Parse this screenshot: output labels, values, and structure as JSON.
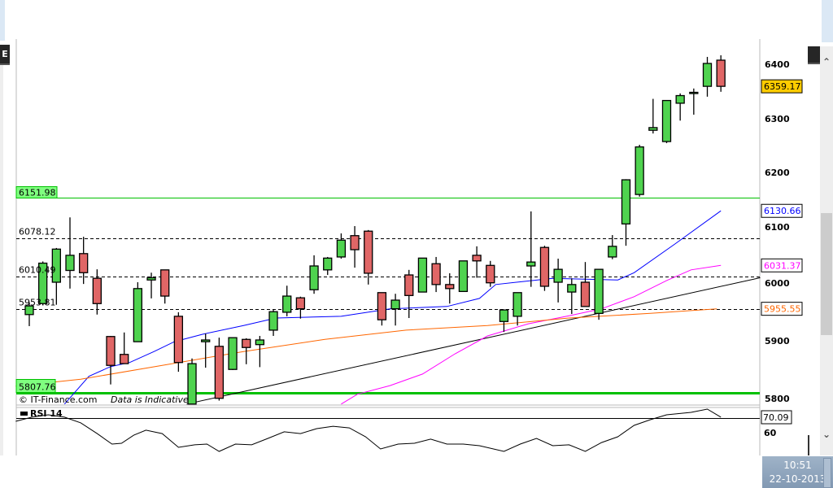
{
  "window": {
    "left_button_label": "E"
  },
  "footer": {
    "copyright": "© IT-Finance.com",
    "disclaimer": "Data is Indicative"
  },
  "clock": {
    "time": "10:51",
    "date": "22-10-2013"
  },
  "colors": {
    "bull": "#4fd34f",
    "bear": "#e06666",
    "ma_fast": "#0000ff",
    "ma_mid": "#ff00ff",
    "ma_slow": "#ff6600",
    "level_green": "#00c000",
    "last_price_bg": "#ffcc00"
  },
  "chart_data": {
    "type": "candlestick",
    "price_axis": {
      "ticks": [
        6400,
        6300,
        6200,
        6100,
        6000,
        5900,
        5800
      ]
    },
    "last_price": "6359.17",
    "candles": [
      [
        5944,
        5965,
        5924,
        5959
      ],
      [
        5963,
        6037,
        5960,
        6034
      ],
      [
        6000,
        6061,
        5961,
        6059
      ],
      [
        6021,
        6116,
        5989,
        6048
      ],
      [
        6051,
        6081,
        5997,
        6017
      ],
      [
        6007,
        6023,
        5944,
        5963
      ],
      [
        5906,
        5907,
        5823,
        5856
      ],
      [
        5875,
        5913,
        5859,
        5859
      ],
      [
        5897,
        6000,
        5897,
        5989
      ],
      [
        6004,
        6017,
        5972,
        6008
      ],
      [
        6022,
        6022,
        5963,
        5976
      ],
      [
        5941,
        5948,
        5845,
        5861
      ],
      [
        5789,
        5868,
        5789,
        5859
      ],
      [
        5897,
        5911,
        5852,
        5900
      ],
      [
        5889,
        5904,
        5795,
        5799
      ],
      [
        5849,
        5904,
        5848,
        5904
      ],
      [
        5901,
        5903,
        5858,
        5887
      ],
      [
        5892,
        5907,
        5853,
        5900
      ],
      [
        5917,
        5952,
        5907,
        5949
      ],
      [
        5948,
        5994,
        5941,
        5976
      ],
      [
        5973,
        5975,
        5937,
        5954
      ],
      [
        5987,
        6048,
        5980,
        6029
      ],
      [
        6022,
        6045,
        6013,
        6043
      ],
      [
        6045,
        6087,
        6042,
        6075
      ],
      [
        6083,
        6100,
        6026,
        6058
      ],
      [
        6091,
        6093,
        5996,
        6016
      ],
      [
        5982,
        5982,
        5925,
        5935
      ],
      [
        5954,
        5980,
        5925,
        5969
      ],
      [
        6013,
        6022,
        5938,
        5977
      ],
      [
        5983,
        6043,
        5983,
        6043
      ],
      [
        6033,
        6045,
        5983,
        5996
      ],
      [
        5996,
        6016,
        5963,
        5989
      ],
      [
        5984,
        6038,
        5984,
        6038
      ],
      [
        6048,
        6064,
        6008,
        6038
      ],
      [
        6030,
        6038,
        5992,
        5999
      ],
      [
        5932,
        5952,
        5914,
        5952
      ],
      [
        5941,
        5982,
        5925,
        5982
      ],
      [
        6029,
        6127,
        5992,
        6036
      ],
      [
        6062,
        6065,
        5985,
        5993
      ],
      [
        6000,
        6042,
        5965,
        6023
      ],
      [
        5983,
        6007,
        5945,
        5996
      ],
      [
        6000,
        6036,
        5958,
        5958
      ],
      [
        5946,
        6023,
        5935,
        6023
      ],
      [
        6045,
        6084,
        6041,
        6064
      ],
      [
        6104,
        6186,
        6065,
        6185
      ],
      [
        6158,
        6250,
        6154,
        6246
      ],
      [
        6277,
        6335,
        6271,
        6282
      ],
      [
        6256,
        6332,
        6253,
        6332
      ],
      [
        6327,
        6345,
        6295,
        6341
      ],
      [
        6346,
        6354,
        6306,
        6347
      ],
      [
        6358,
        6412,
        6339,
        6400
      ],
      [
        6406,
        6415,
        6348,
        6358
      ]
    ],
    "candle_format": [
      "open",
      "high",
      "low",
      "close"
    ],
    "moving_averages": [
      {
        "name": "fast",
        "label": "6130.66",
        "points": [
          [
            2.6,
            5789
          ],
          [
            4.4,
            5837
          ],
          [
            6.0,
            5854
          ],
          [
            7.4,
            5861
          ],
          [
            9.2,
            5880
          ],
          [
            10.7,
            5897
          ],
          [
            12.8,
            5910
          ],
          [
            15.8,
            5925
          ],
          [
            18.2,
            5938
          ],
          [
            23.0,
            5941
          ],
          [
            26.6,
            5954
          ],
          [
            30.8,
            5958
          ],
          [
            33.2,
            5972
          ],
          [
            34.4,
            5996
          ],
          [
            38.6,
            6007
          ],
          [
            43.4,
            6004
          ],
          [
            44.6,
            6017
          ],
          [
            47.6,
            6068
          ],
          [
            51.0,
            6128
          ]
        ]
      },
      {
        "name": "mid",
        "label": "6031.37",
        "points": [
          [
            23.0,
            5789
          ],
          [
            24.2,
            5806
          ],
          [
            26.6,
            5821
          ],
          [
            29.0,
            5841
          ],
          [
            31.4,
            5876
          ],
          [
            33.8,
            5907
          ],
          [
            36.8,
            5928
          ],
          [
            39.8,
            5942
          ],
          [
            42.2,
            5954
          ],
          [
            44.6,
            5975
          ],
          [
            47.0,
            6003
          ],
          [
            48.8,
            6022
          ],
          [
            51.0,
            6030
          ]
        ]
      },
      {
        "name": "slow",
        "label": "5955.55",
        "points": [
          [
            -1.0,
            5820
          ],
          [
            3.8,
            5832
          ],
          [
            9.8,
            5856
          ],
          [
            15.8,
            5880
          ],
          [
            21.8,
            5901
          ],
          [
            27.8,
            5917
          ],
          [
            33.8,
            5925
          ],
          [
            39.8,
            5938
          ],
          [
            45.8,
            5946
          ],
          [
            50.7,
            5954
          ]
        ]
      }
    ],
    "trendline": [
      [
        11.6,
        5789
      ],
      [
        53.9,
        6008
      ]
    ],
    "levels": [
      {
        "label": "6151.98",
        "value": 6151.98,
        "style": "solid-green"
      },
      {
        "label": "6078.12",
        "value": 6078.12,
        "style": "dashed"
      },
      {
        "label": "6010.49",
        "value": 6010.49,
        "style": "dashed"
      },
      {
        "label": "5953.81",
        "value": 5953.81,
        "style": "dashed"
      },
      {
        "label": "5807.76",
        "value": 5807.76,
        "style": "thick-green"
      }
    ],
    "rsi": {
      "title": "RSI 14",
      "level": 70,
      "tick": "60",
      "last_label": "70.09",
      "points": [
        [
          -1.0,
          67.8
        ],
        [
          0.2,
          70.6
        ],
        [
          1.4,
          72.2
        ],
        [
          2.6,
          70.6
        ],
        [
          3.8,
          66.7
        ],
        [
          5.0,
          59.4
        ],
        [
          6.1,
          52.2
        ],
        [
          6.8,
          52.8
        ],
        [
          7.7,
          58.3
        ],
        [
          8.6,
          61.7
        ],
        [
          9.8,
          59.4
        ],
        [
          11.0,
          50.0
        ],
        [
          12.2,
          51.7
        ],
        [
          13.1,
          52.2
        ],
        [
          14.0,
          47.2
        ],
        [
          15.2,
          52.2
        ],
        [
          16.4,
          51.7
        ],
        [
          17.6,
          56.1
        ],
        [
          18.8,
          60.6
        ],
        [
          20.0,
          59.4
        ],
        [
          21.2,
          62.8
        ],
        [
          22.4,
          64.4
        ],
        [
          23.6,
          63.3
        ],
        [
          24.8,
          57.2
        ],
        [
          25.9,
          48.9
        ],
        [
          27.2,
          52.2
        ],
        [
          28.4,
          52.8
        ],
        [
          29.6,
          55.6
        ],
        [
          30.8,
          52.2
        ],
        [
          32.0,
          52.2
        ],
        [
          33.2,
          51.1
        ],
        [
          35.0,
          47.2
        ],
        [
          36.2,
          52.2
        ],
        [
          37.4,
          56.1
        ],
        [
          38.6,
          51.1
        ],
        [
          39.8,
          51.7
        ],
        [
          41.0,
          47.2
        ],
        [
          42.2,
          53.3
        ],
        [
          43.4,
          57.2
        ],
        [
          44.6,
          65.0
        ],
        [
          45.8,
          68.9
        ],
        [
          47.0,
          72.2
        ],
        [
          48.8,
          73.9
        ],
        [
          50.0,
          76.1
        ],
        [
          51.0,
          70.6
        ]
      ]
    }
  }
}
